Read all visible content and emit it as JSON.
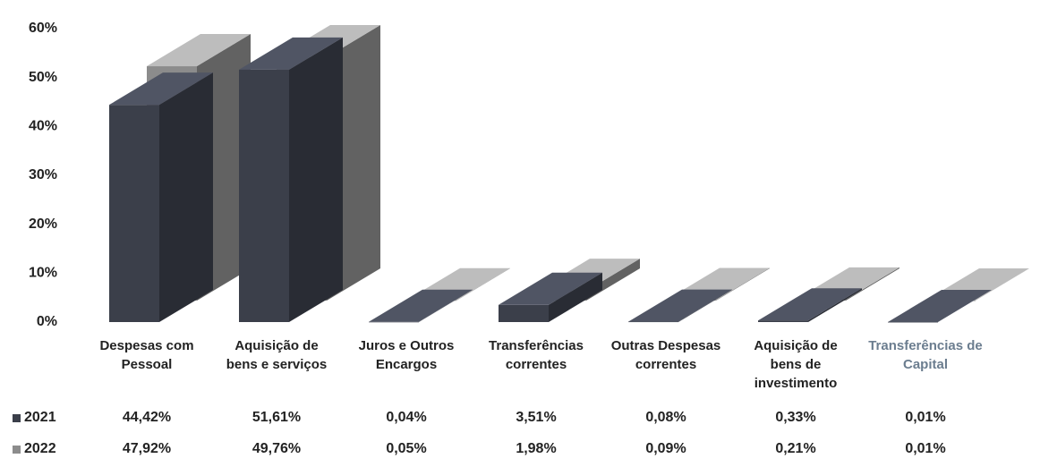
{
  "chart_data": {
    "type": "bar3d",
    "categories": [
      "Despesas com Pessoal",
      "Aquisição de bens e serviços",
      "Juros e Outros Encargos",
      "Transferências correntes",
      "Outras Despesas correntes",
      "Aquisição de bens de investimento",
      "Transferências de Capital"
    ],
    "series": [
      {
        "name": "2021",
        "color": "#3b3f4a",
        "values": [
          44.42,
          51.61,
          0.04,
          3.51,
          0.08,
          0.33,
          0.01
        ],
        "value_labels": [
          "44,42%",
          "51,61%",
          "0,04%",
          "3,51%",
          "0,08%",
          "0,33%",
          "0,01%"
        ]
      },
      {
        "name": "2022",
        "color": "#8c8c8c",
        "values": [
          47.92,
          49.76,
          0.05,
          1.98,
          0.09,
          0.21,
          0.01
        ],
        "value_labels": [
          "47,92%",
          "49,76%",
          "0,05%",
          "1,98%",
          "0,09%",
          "0,21%",
          "0,01%"
        ]
      }
    ],
    "ylim": [
      0,
      60
    ],
    "yticks": [
      {
        "value": 0,
        "label": "0%"
      },
      {
        "value": 10,
        "label": "10%"
      },
      {
        "value": 20,
        "label": "20%"
      },
      {
        "value": 30,
        "label": "30%"
      },
      {
        "value": 40,
        "label": "40%"
      },
      {
        "value": 50,
        "label": "50%"
      },
      {
        "value": 60,
        "label": "60%"
      }
    ],
    "grid": false
  }
}
